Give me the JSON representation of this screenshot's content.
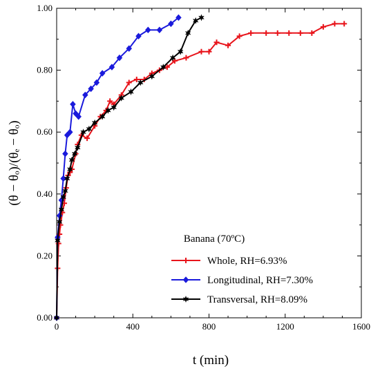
{
  "chart_data": {
    "type": "line",
    "xlabel": "t (min)",
    "ylabel": "(θ − θₒ)/(θₑ − θₒ)",
    "xlim": [
      0,
      1600
    ],
    "ylim": [
      0,
      1
    ],
    "xticks": [
      "0",
      "400",
      "800",
      "1200",
      "1600"
    ],
    "yticks": [
      "0.00",
      "0.20",
      "0.40",
      "0.60",
      "0.80",
      "1.00"
    ],
    "grid": false,
    "legend_position": "bottom-right",
    "legend_title": "Banana (70ºC)",
    "series": [
      {
        "name": "Whole, RH=6.93%",
        "color": "#e8141b",
        "marker": "plus",
        "points": [
          [
            0,
            0.0
          ],
          [
            5,
            0.16
          ],
          [
            10,
            0.24
          ],
          [
            15,
            0.27
          ],
          [
            20,
            0.3
          ],
          [
            30,
            0.34
          ],
          [
            40,
            0.37
          ],
          [
            50,
            0.42
          ],
          [
            60,
            0.46
          ],
          [
            70,
            0.47
          ],
          [
            80,
            0.48
          ],
          [
            100,
            0.53
          ],
          [
            110,
            0.56
          ],
          [
            130,
            0.59
          ],
          [
            160,
            0.58
          ],
          [
            200,
            0.62
          ],
          [
            230,
            0.65
          ],
          [
            260,
            0.67
          ],
          [
            280,
            0.7
          ],
          [
            300,
            0.69
          ],
          [
            340,
            0.72
          ],
          [
            380,
            0.76
          ],
          [
            420,
            0.77
          ],
          [
            460,
            0.77
          ],
          [
            500,
            0.79
          ],
          [
            540,
            0.8
          ],
          [
            580,
            0.81
          ],
          [
            620,
            0.83
          ],
          [
            680,
            0.84
          ],
          [
            760,
            0.86
          ],
          [
            800,
            0.86
          ],
          [
            840,
            0.89
          ],
          [
            900,
            0.88
          ],
          [
            960,
            0.91
          ],
          [
            1020,
            0.92
          ],
          [
            1100,
            0.92
          ],
          [
            1160,
            0.92
          ],
          [
            1220,
            0.92
          ],
          [
            1280,
            0.92
          ],
          [
            1340,
            0.92
          ],
          [
            1400,
            0.94
          ],
          [
            1460,
            0.95
          ],
          [
            1510,
            0.95
          ]
        ]
      },
      {
        "name": "Longitudinal, RH=7.30%",
        "color": "#1a1adc",
        "marker": "diamond",
        "points": [
          [
            0,
            0.0
          ],
          [
            5,
            0.26
          ],
          [
            15,
            0.33
          ],
          [
            25,
            0.38
          ],
          [
            35,
            0.45
          ],
          [
            45,
            0.53
          ],
          [
            55,
            0.59
          ],
          [
            70,
            0.6
          ],
          [
            85,
            0.69
          ],
          [
            100,
            0.66
          ],
          [
            115,
            0.65
          ],
          [
            150,
            0.72
          ],
          [
            180,
            0.74
          ],
          [
            210,
            0.76
          ],
          [
            240,
            0.79
          ],
          [
            290,
            0.81
          ],
          [
            330,
            0.84
          ],
          [
            380,
            0.87
          ],
          [
            430,
            0.91
          ],
          [
            480,
            0.93
          ],
          [
            540,
            0.93
          ],
          [
            600,
            0.95
          ],
          [
            640,
            0.97
          ]
        ]
      },
      {
        "name": "Transversal, RH=8.09%",
        "color": "#000000",
        "marker": "star",
        "points": [
          [
            0,
            0.0
          ],
          [
            5,
            0.25
          ],
          [
            15,
            0.31
          ],
          [
            25,
            0.35
          ],
          [
            35,
            0.39
          ],
          [
            45,
            0.41
          ],
          [
            55,
            0.45
          ],
          [
            70,
            0.48
          ],
          [
            80,
            0.51
          ],
          [
            95,
            0.53
          ],
          [
            110,
            0.55
          ],
          [
            140,
            0.6
          ],
          [
            170,
            0.61
          ],
          [
            200,
            0.63
          ],
          [
            240,
            0.65
          ],
          [
            270,
            0.67
          ],
          [
            300,
            0.68
          ],
          [
            340,
            0.71
          ],
          [
            390,
            0.73
          ],
          [
            440,
            0.76
          ],
          [
            500,
            0.78
          ],
          [
            560,
            0.81
          ],
          [
            610,
            0.84
          ],
          [
            650,
            0.86
          ],
          [
            690,
            0.92
          ],
          [
            730,
            0.96
          ],
          [
            760,
            0.97
          ]
        ]
      }
    ]
  }
}
